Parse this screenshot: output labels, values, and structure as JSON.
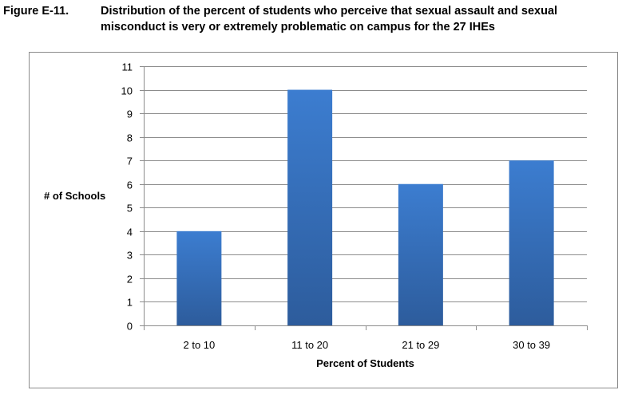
{
  "figure": {
    "label": "Figure E-11.",
    "title": "Distribution of the percent of students who perceive that sexual assault and sexual misconduct is very or extremely problematic on campus for the 27 IHEs"
  },
  "chart_data": {
    "type": "bar",
    "categories": [
      "2 to 10",
      "11 to 20",
      "21 to 29",
      "30 to 39"
    ],
    "values": [
      4,
      10,
      6,
      7
    ],
    "title": "",
    "xlabel": "Percent of Students",
    "ylabel": "# of Schools",
    "ylim": [
      0,
      11
    ],
    "yticks": [
      0,
      1,
      2,
      3,
      4,
      5,
      6,
      7,
      8,
      9,
      10,
      11
    ],
    "grid": true,
    "legend": "none",
    "bar_color_top": "#3c7dd0",
    "bar_color_bottom": "#2d5c9c"
  }
}
